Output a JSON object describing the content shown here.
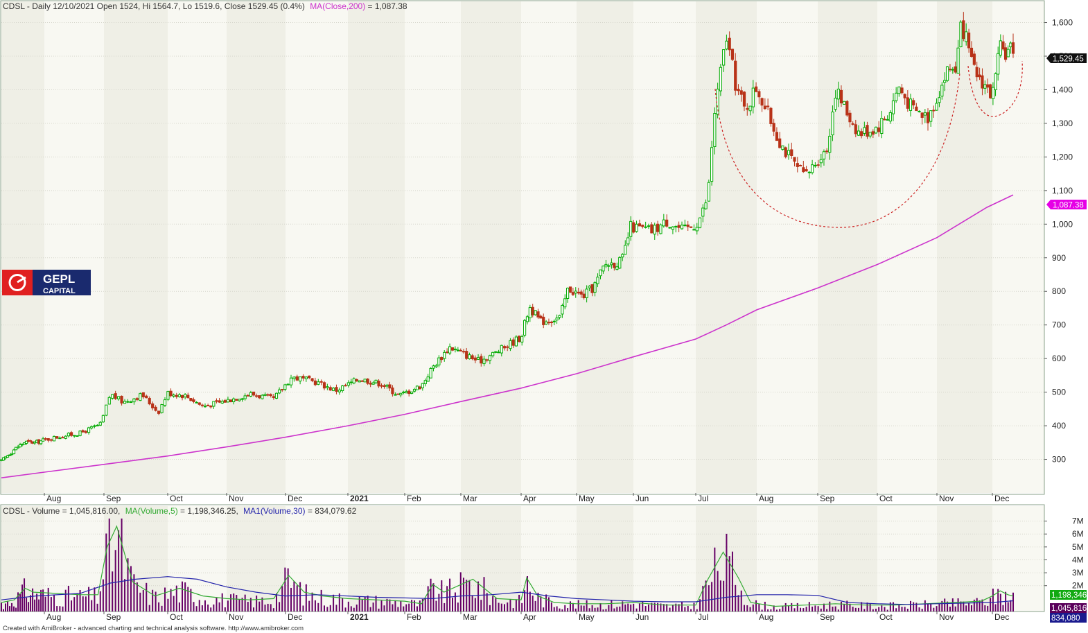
{
  "price_header": {
    "prefix": "CDSL - Daily 12/10/2021 Open 1524, Hi 1564.7, Lo 1519.6, Close 1529.45 (0.4%)",
    "ma_label": "MA(Close,200)",
    "ma_value": " = 1,087.38"
  },
  "volume_header": {
    "prefix": "CDSL - Volume = 1,045,816.00,",
    "ma5_label": "MA(Volume,5)",
    "ma5_value": " = 1,198,346.25,",
    "ma30_label": "MA1(Volume,30)",
    "ma30_value": " = 834,079.62"
  },
  "logo": {
    "line1": "GEPL",
    "line2": "CAPITAL"
  },
  "footer": "Created with AmiBroker - advanced charting and technical analysis software. http://www.amibroker.com",
  "badges": {
    "close": "1,529.45",
    "ma200": "1,087.38",
    "vol_ma5": "1,198,346",
    "volume": "1,045,816",
    "vol_ma30": "834,080"
  },
  "colors": {
    "up_candle": "#00aa00",
    "down_candle": "#b83218",
    "ma200": "#cc33cc",
    "vol_ma5": "#33aa33",
    "vol_ma30": "#2222aa",
    "volume_bar": "#660066",
    "band_shade": "#efefe6",
    "band_light": "#f8f8f2",
    "pattern_curve": "#cc2222"
  },
  "chart_data": [
    {
      "type": "candlestick",
      "title": "CDSL - Daily",
      "y_ticks": [
        300,
        400,
        500,
        600,
        700,
        800,
        900,
        1000,
        1100,
        1200,
        1300,
        1400,
        1500,
        1600
      ],
      "y_tick_labels": [
        "300",
        "400",
        "500",
        "600",
        "700",
        "800",
        "900",
        "1,000",
        "1,100",
        "1,200",
        "1,300",
        "1,400",
        "1,500",
        "1,600"
      ],
      "ylim": [
        200,
        1630
      ],
      "x_labels": [
        {
          "label": "Aug",
          "month": 1
        },
        {
          "label": "Sep",
          "month": 2
        },
        {
          "label": "Oct",
          "month": 3
        },
        {
          "label": "Nov",
          "month": 4
        },
        {
          "label": "Dec",
          "month": 5
        },
        {
          "label": "2021",
          "month": 6,
          "bold": true
        },
        {
          "label": "Feb",
          "month": 7
        },
        {
          "label": "Mar",
          "month": 8
        },
        {
          "label": "Apr",
          "month": 9
        },
        {
          "label": "May",
          "month": 10
        },
        {
          "label": "Jun",
          "month": 11
        },
        {
          "label": "Jul",
          "month": 12
        },
        {
          "label": "Aug",
          "month": 13
        },
        {
          "label": "Sep",
          "month": 14
        },
        {
          "label": "Oct",
          "month": 15
        },
        {
          "label": "Nov",
          "month": 16
        },
        {
          "label": "Dec",
          "month": 17
        }
      ],
      "series": [
        {
          "name": "MA(Close,200)",
          "x_months": [
            0,
            1,
            2,
            3,
            4,
            5,
            6,
            7,
            8,
            9,
            10,
            11,
            12,
            12.5,
            13,
            14,
            15,
            16,
            16.9,
            17.4
          ],
          "values": [
            245,
            262,
            285,
            310,
            337,
            366,
            400,
            434,
            472,
            512,
            555,
            605,
            658,
            700,
            745,
            810,
            880,
            960,
            1050,
            1087
          ]
        }
      ],
      "close_path": [
        {
          "m": 0.0,
          "c": 295
        },
        {
          "m": 0.3,
          "c": 330
        },
        {
          "m": 0.55,
          "c": 352
        },
        {
          "m": 0.8,
          "c": 350
        },
        {
          "m": 1.2,
          "c": 366
        },
        {
          "m": 1.6,
          "c": 378
        },
        {
          "m": 1.95,
          "c": 405
        },
        {
          "m": 2.1,
          "c": 495
        },
        {
          "m": 2.3,
          "c": 470
        },
        {
          "m": 2.6,
          "c": 492
        },
        {
          "m": 2.85,
          "c": 440
        },
        {
          "m": 3.0,
          "c": 498
        },
        {
          "m": 3.3,
          "c": 490
        },
        {
          "m": 3.6,
          "c": 458
        },
        {
          "m": 4.0,
          "c": 475
        },
        {
          "m": 4.4,
          "c": 495
        },
        {
          "m": 4.8,
          "c": 480
        },
        {
          "m": 5.1,
          "c": 545
        },
        {
          "m": 5.5,
          "c": 530
        },
        {
          "m": 5.8,
          "c": 505
        },
        {
          "m": 6.2,
          "c": 540
        },
        {
          "m": 6.6,
          "c": 525
        },
        {
          "m": 6.9,
          "c": 490
        },
        {
          "m": 7.3,
          "c": 520
        },
        {
          "m": 7.5,
          "c": 575
        },
        {
          "m": 7.8,
          "c": 635
        },
        {
          "m": 8.3,
          "c": 592
        },
        {
          "m": 8.6,
          "c": 620
        },
        {
          "m": 9.0,
          "c": 665
        },
        {
          "m": 9.15,
          "c": 755
        },
        {
          "m": 9.35,
          "c": 710
        },
        {
          "m": 9.7,
          "c": 722
        },
        {
          "m": 9.85,
          "c": 810
        },
        {
          "m": 10.1,
          "c": 785
        },
        {
          "m": 10.3,
          "c": 812
        },
        {
          "m": 10.5,
          "c": 880
        },
        {
          "m": 10.8,
          "c": 890
        },
        {
          "m": 10.95,
          "c": 992
        },
        {
          "m": 11.3,
          "c": 980
        },
        {
          "m": 11.55,
          "c": 1010
        },
        {
          "m": 11.8,
          "c": 980
        },
        {
          "m": 12.0,
          "c": 1000
        },
        {
          "m": 12.1,
          "c": 1030
        },
        {
          "m": 12.2,
          "c": 1085
        },
        {
          "m": 12.3,
          "c": 1320
        },
        {
          "m": 12.5,
          "c": 1560
        },
        {
          "m": 12.65,
          "c": 1420
        },
        {
          "m": 12.8,
          "c": 1340
        },
        {
          "m": 13.0,
          "c": 1410
        },
        {
          "m": 13.2,
          "c": 1320
        },
        {
          "m": 13.4,
          "c": 1240
        },
        {
          "m": 13.6,
          "c": 1180
        },
        {
          "m": 13.8,
          "c": 1140
        },
        {
          "m": 14.0,
          "c": 1195
        },
        {
          "m": 14.15,
          "c": 1220
        },
        {
          "m": 14.3,
          "c": 1400
        },
        {
          "m": 14.5,
          "c": 1330
        },
        {
          "m": 14.7,
          "c": 1270
        },
        {
          "m": 15.0,
          "c": 1290
        },
        {
          "m": 15.2,
          "c": 1330
        },
        {
          "m": 15.35,
          "c": 1410
        },
        {
          "m": 15.6,
          "c": 1340
        },
        {
          "m": 15.85,
          "c": 1320
        },
        {
          "m": 16.0,
          "c": 1380
        },
        {
          "m": 16.2,
          "c": 1460
        },
        {
          "m": 16.35,
          "c": 1470
        },
        {
          "m": 16.45,
          "c": 1600
        },
        {
          "m": 16.65,
          "c": 1460
        },
        {
          "m": 16.85,
          "c": 1420
        },
        {
          "m": 17.0,
          "c": 1380
        },
        {
          "m": 17.15,
          "c": 1520
        },
        {
          "m": 17.3,
          "c": 1510
        },
        {
          "m": 17.4,
          "c": 1529
        }
      ]
    },
    {
      "type": "bar",
      "title": "CDSL - Volume",
      "y_tick_labels": [
        "2M",
        "3M",
        "4M",
        "5M",
        "6M",
        "7M"
      ],
      "y_ticks": [
        2000000,
        3000000,
        4000000,
        5000000,
        6000000,
        7000000
      ],
      "ylim": [
        0,
        7300000
      ],
      "series": [
        {
          "name": "MA(Volume,5)",
          "x_months": [
            0,
            0.3,
            0.55,
            0.75,
            1.2,
            1.6,
            1.9,
            2.05,
            2.2,
            2.45,
            2.8,
            3.2,
            3.6,
            4.0,
            4.4,
            4.8,
            5.05,
            5.3,
            5.6,
            6.0,
            6.5,
            7.0,
            7.3,
            7.5,
            7.7,
            8.2,
            8.6,
            9.0,
            9.1,
            9.3,
            9.6,
            10.0,
            10.5,
            11.0,
            11.5,
            12.0,
            12.2,
            12.45,
            12.7,
            12.9,
            13.3,
            13.8,
            14.3,
            14.8,
            15.3,
            15.8,
            16.3,
            16.8,
            17.0,
            17.15,
            17.3,
            17.4
          ],
          "values": [
            700000,
            900000,
            1800000,
            1500000,
            1400000,
            1300000,
            1300000,
            5000000,
            6600000,
            2300000,
            1200000,
            1800000,
            1200000,
            1000000,
            900000,
            1000000,
            2800000,
            1500000,
            1200000,
            1000000,
            900000,
            800000,
            600000,
            2100000,
            1500000,
            2500000,
            1000000,
            900000,
            2600000,
            1200000,
            700000,
            600000,
            600000,
            700000,
            500000,
            500000,
            2500000,
            4600000,
            2600000,
            700000,
            400000,
            500000,
            600000,
            500000,
            500000,
            600000,
            700000,
            800000,
            1200000,
            1600000,
            1300000,
            1198346
          ]
        },
        {
          "name": "MA1(Volume,30)",
          "x_months": [
            0,
            0.8,
            1.6,
            2.1,
            2.5,
            3.0,
            3.5,
            4.0,
            4.5,
            5.0,
            5.5,
            6.0,
            6.5,
            7.0,
            7.5,
            8.0,
            8.5,
            9.0,
            9.5,
            10.0,
            10.5,
            11.0,
            11.5,
            12.0,
            12.5,
            13.0,
            13.5,
            14.0,
            14.5,
            15.0,
            15.5,
            16.0,
            16.5,
            17.0,
            17.4
          ],
          "values": [
            900000,
            1200000,
            1400000,
            2200000,
            2500000,
            2700000,
            2500000,
            1900000,
            1500000,
            1200000,
            1300000,
            1200000,
            1100000,
            1050000,
            1000000,
            1200000,
            1300000,
            1500000,
            1200000,
            1000000,
            900000,
            800000,
            750000,
            750000,
            1100000,
            1300000,
            1300000,
            1250000,
            700000,
            600000,
            550000,
            600000,
            650000,
            700000,
            834080
          ]
        }
      ]
    }
  ]
}
